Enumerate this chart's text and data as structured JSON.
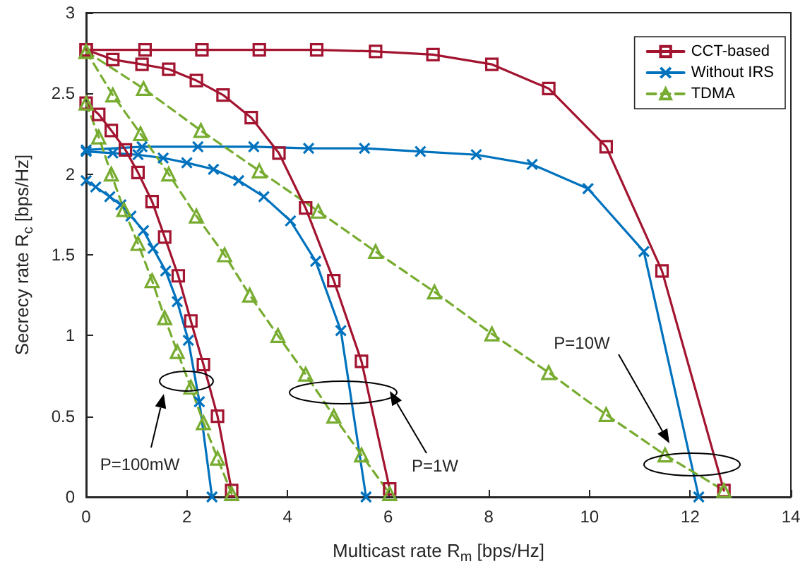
{
  "chart_data": {
    "type": "line",
    "xlabel": "Multicast rate R$_{m}$ [bps/Hz]",
    "ylabel": "Secrecy rate R$_{c}$ [bps/Hz]",
    "xlim": [
      0,
      14
    ],
    "xticks": [
      0,
      2,
      4,
      6,
      8,
      10,
      12,
      14
    ],
    "ylim": [
      0,
      3
    ],
    "yticks": [
      0,
      0.5,
      1,
      1.5,
      2,
      2.5,
      3
    ],
    "grid": false,
    "legend": "top right",
    "series": [
      {
        "name": "CCT-based",
        "color": "#a2142f",
        "marker": "square",
        "line_style": "solid",
        "x": [
          0,
          1.17,
          2.3,
          3.44,
          4.58,
          5.75,
          6.89,
          8.06,
          9.19,
          10.33,
          11.44,
          12.67
        ],
        "values": [
          2.77,
          2.77,
          2.77,
          2.77,
          2.77,
          2.76,
          2.74,
          2.68,
          2.53,
          2.17,
          1.4,
          0.04
        ]
      },
      {
        "name": "Without IRS",
        "color": "#0072bd",
        "marker": "cross",
        "line_style": "solid",
        "x": [
          0,
          1.11,
          2.22,
          3.33,
          4.42,
          5.53,
          6.64,
          7.75,
          8.86,
          9.97,
          11.08,
          12.17
        ],
        "values": [
          2.15,
          2.17,
          2.17,
          2.17,
          2.16,
          2.16,
          2.14,
          2.12,
          2.06,
          1.91,
          1.52,
          0
        ]
      },
      {
        "name": "TDMA",
        "color": "#77ac30",
        "marker": "triangle",
        "line_style": "dashed",
        "x": [
          0,
          1.14,
          2.28,
          3.44,
          4.61,
          5.75,
          6.92,
          8.06,
          9.19,
          10.33,
          11.5,
          12.67
        ],
        "values": [
          2.76,
          2.53,
          2.27,
          2.02,
          1.77,
          1.52,
          1.27,
          1.01,
          0.77,
          0.51,
          0.26,
          0.04
        ]
      },
      {
        "color": "#a2142f",
        "marker": "square",
        "line_style": "solid",
        "x": [
          0,
          0.53,
          1.11,
          1.64,
          2.19,
          2.72,
          3.28,
          3.83,
          4.36,
          4.92,
          5.47,
          6.03
        ],
        "values": [
          2.77,
          2.71,
          2.68,
          2.65,
          2.58,
          2.49,
          2.35,
          2.13,
          1.79,
          1.34,
          0.84,
          0.05
        ]
      },
      {
        "color": "#0072bd",
        "marker": "cross",
        "line_style": "solid",
        "x": [
          0,
          0.53,
          1.03,
          1.53,
          2.0,
          2.53,
          3.03,
          3.53,
          4.06,
          4.56,
          5.06,
          5.56
        ],
        "values": [
          2.14,
          2.13,
          2.12,
          2.1,
          2.07,
          2.03,
          1.96,
          1.86,
          1.71,
          1.46,
          1.03,
          0
        ]
      },
      {
        "color": "#77ac30",
        "marker": "triangle",
        "line_style": "dashed",
        "x": [
          0,
          0.53,
          1.08,
          1.64,
          2.19,
          2.75,
          3.25,
          3.81,
          4.36,
          4.92,
          5.47,
          6.03
        ],
        "values": [
          2.76,
          2.49,
          2.25,
          2.0,
          1.74,
          1.5,
          1.25,
          1.0,
          0.76,
          0.5,
          0.26,
          0.02
        ]
      },
      {
        "color": "#a2142f",
        "marker": "square",
        "line_style": "solid",
        "x": [
          0,
          0.25,
          0.5,
          0.78,
          1.03,
          1.31,
          1.56,
          1.83,
          2.08,
          2.33,
          2.61,
          2.89
        ],
        "values": [
          2.44,
          2.37,
          2.27,
          2.15,
          2.01,
          1.83,
          1.61,
          1.37,
          1.09,
          0.82,
          0.5,
          0.04
        ]
      },
      {
        "color": "#0072bd",
        "marker": "cross",
        "line_style": "solid",
        "x": [
          0,
          0.19,
          0.47,
          0.69,
          0.89,
          1.14,
          1.33,
          1.58,
          1.81,
          2.03,
          2.25,
          2.5
        ],
        "values": [
          1.96,
          1.92,
          1.86,
          1.81,
          1.74,
          1.65,
          1.54,
          1.4,
          1.21,
          0.97,
          0.59,
          0
        ]
      },
      {
        "color": "#77ac30",
        "marker": "triangle",
        "line_style": "dashed",
        "x": [
          0,
          0.25,
          0.5,
          0.75,
          1.03,
          1.31,
          1.56,
          1.81,
          2.08,
          2.33,
          2.61,
          2.89
        ],
        "values": [
          2.44,
          2.23,
          2.0,
          1.78,
          1.57,
          1.34,
          1.11,
          0.9,
          0.68,
          0.46,
          0.24,
          0.02
        ]
      }
    ],
    "annotations": [
      "P=100mW",
      "P=1W",
      "P=10W"
    ]
  }
}
